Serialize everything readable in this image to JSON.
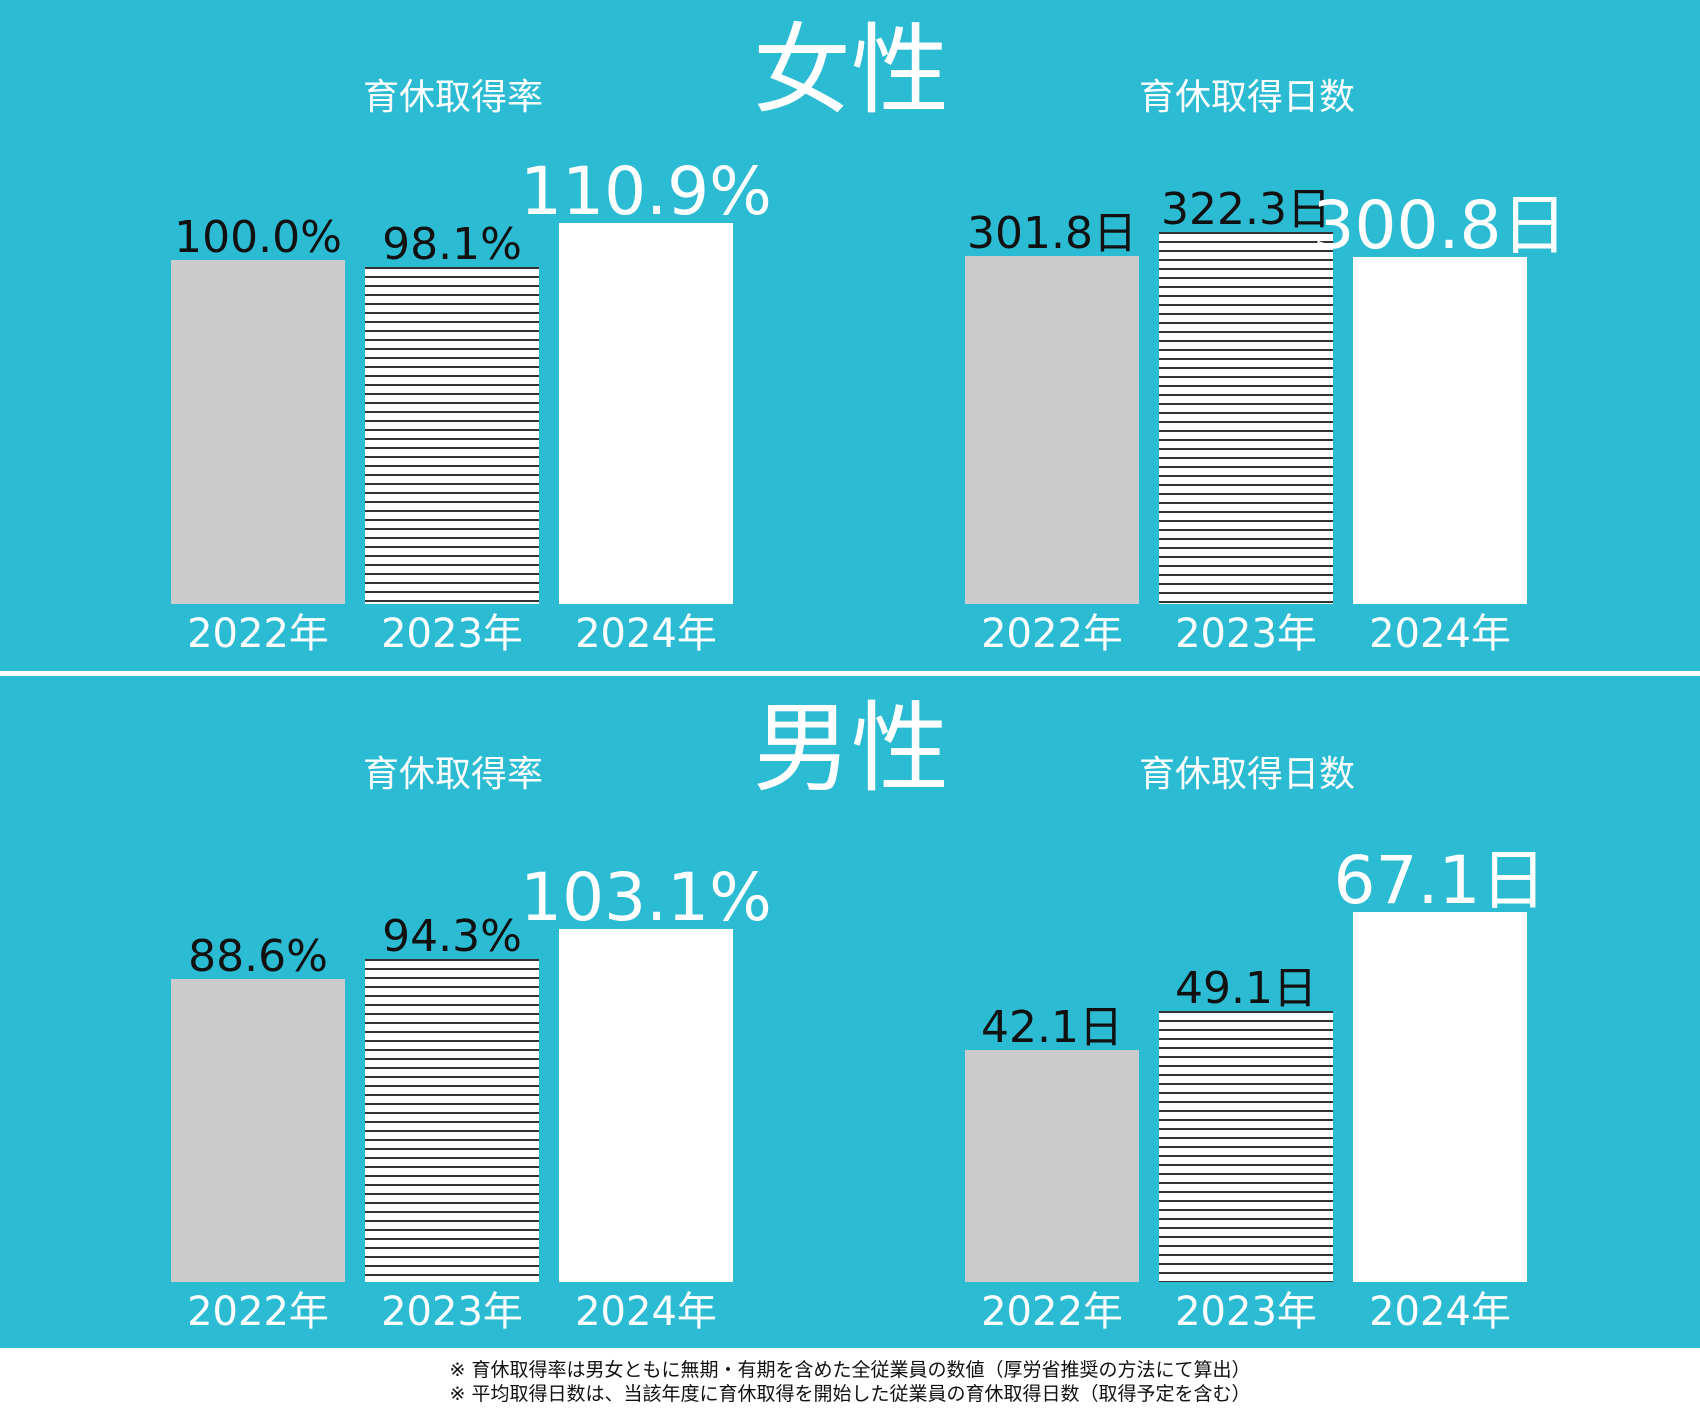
{
  "colors": {
    "background": "#2bbcd4",
    "bar_2022": "#cccccc",
    "bar_2023": "striped",
    "bar_2024": "#ffffff"
  },
  "sections": [
    {
      "title": "女性"
    },
    {
      "title": "男性"
    }
  ],
  "chart_data": [
    {
      "type": "bar",
      "section": "女性",
      "title": "育休取得率",
      "categories": [
        "2022年",
        "2023年",
        "2024年"
      ],
      "values": [
        100.0,
        98.1,
        110.9
      ],
      "labels": [
        "100.0%",
        "98.1%",
        "110.9%"
      ]
    },
    {
      "type": "bar",
      "section": "女性",
      "title": "育休取得日数",
      "categories": [
        "2022年",
        "2023年",
        "2024年"
      ],
      "values": [
        301.8,
        322.3,
        300.8
      ],
      "labels": [
        "301.8日",
        "322.3日",
        "300.8日"
      ]
    },
    {
      "type": "bar",
      "section": "男性",
      "title": "育休取得率",
      "categories": [
        "2022年",
        "2023年",
        "2024年"
      ],
      "values": [
        88.6,
        94.3,
        103.1
      ],
      "labels": [
        "88.6%",
        "94.3%",
        "103.1%"
      ]
    },
    {
      "type": "bar",
      "section": "男性",
      "title": "育休取得日数",
      "categories": [
        "2022年",
        "2023年",
        "2024年"
      ],
      "values": [
        42.1,
        49.1,
        67.1
      ],
      "labels": [
        "42.1日",
        "49.1日",
        "67.1日"
      ]
    }
  ],
  "notes": [
    "※ 育休取得率は男女ともに無期・有期を含めた全従業員の数値（厚労省推奨の方法にて算出）",
    "※ 平均取得日数は、当該年度に育休取得を開始した従業員の育休取得日数（取得予定を含む）"
  ]
}
